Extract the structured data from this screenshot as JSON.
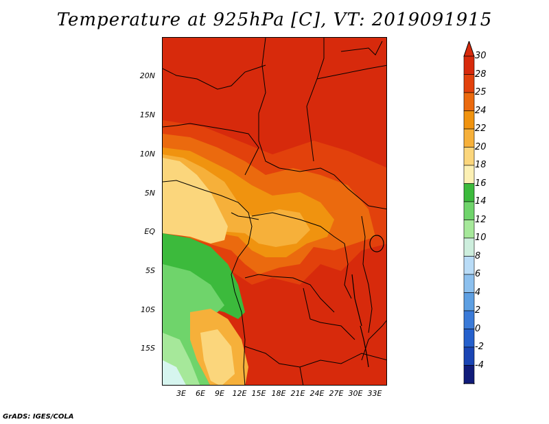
{
  "title": "Temperature at 925hPa [C], VT: 2019091915",
  "credit": "GrADS: IGES/COLA",
  "y_axis_labels": [
    "20N",
    "15N",
    "10N",
    "5N",
    "EQ",
    "5S",
    "10S",
    "15S"
  ],
  "x_axis_labels": [
    "3E",
    "6E",
    "9E",
    "12E",
    "15E",
    "18E",
    "21E",
    "24E",
    "27E",
    "30E",
    "33E"
  ],
  "colorbar": {
    "labels": [
      "30",
      "28",
      "25",
      "24",
      "22",
      "20",
      "18",
      "16",
      "14",
      "12",
      "10",
      "8",
      "6",
      "4",
      "2",
      "0",
      "-2",
      "-4"
    ],
    "colors": [
      "#d72a0c",
      "#e2410c",
      "#eb6a0e",
      "#f0930f",
      "#f6b03a",
      "#fbd67c",
      "#fcf0b4",
      "#3cba3c",
      "#6fd46b",
      "#a6e89a",
      "#cdeedd",
      "#b9dcf7",
      "#8cc0ee",
      "#5d9fe2",
      "#3a7ad8",
      "#2560cc",
      "#1a45b4",
      "#101c7a"
    ],
    "tip_top": "#d72a0c",
    "tip_bottom": "#d9d2ee"
  },
  "palette": {
    "hot": "#d72a0c",
    "warm": "#e2410c",
    "orange": "#eb6a0e",
    "amber": "#f0930f",
    "light_orange": "#f6b03a",
    "yellow": "#fbd67c",
    "pale_yellow": "#fcf0b4",
    "green": "#3cba3c",
    "light_green": "#6fd46b",
    "pale_green": "#a6e89a",
    "cyan_pale": "#d6f5ef"
  }
}
